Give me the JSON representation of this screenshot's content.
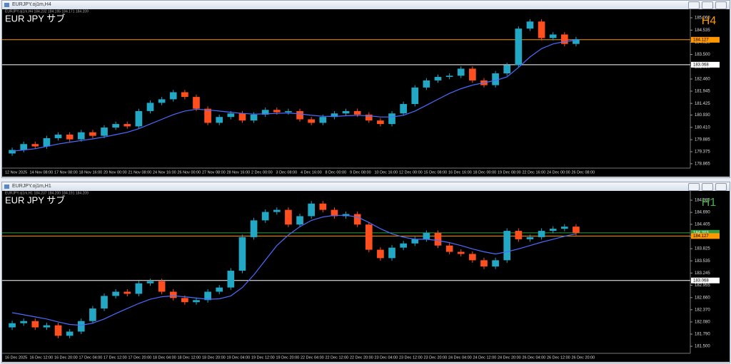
{
  "windows": [
    {
      "title": "EURJPY.oj1m,H4"
    },
    {
      "title": "EURJPY.oj1m,H1"
    }
  ],
  "chart_data": [
    {
      "type": "candlestick",
      "info": "EURJPY.oj1m,H4 184.232 184.195 184.171 184.209",
      "symbol_label": "EUR JPY  サブ",
      "timeframe_label": "H4",
      "timeframe_color": "#ff9800",
      "x_labels": [
        "12 Nov 2025",
        "14 Nov 08:00",
        "17 Nov 08:00",
        "18 Nov 16:00",
        "20 Nov 00:00",
        "21 Nov 08:00",
        "24 Nov 16:00",
        "26 Nov 00:00",
        "27 Nov 08:00",
        "28 Nov 16:00",
        "2 Dec 00:00",
        "3 Dec 08:00",
        "4 Dec 16:00",
        "8 Dec 00:00",
        "9 Dec 08:00",
        "10 Dec 16:00",
        "12 Dec 00:00",
        "15 Dec 08:00",
        "16 Dec 16:00",
        "18 Dec 00:00",
        "19 Dec 08:00",
        "22 Dec 16:00",
        "24 Dec 00:00",
        "26 Dec 08:00"
      ],
      "open": [
        179.3,
        179.45,
        179.7,
        179.6,
        179.95,
        180.1,
        179.9,
        180.2,
        180.05,
        180.4,
        180.55,
        180.45,
        181.1,
        181.45,
        181.6,
        181.9,
        181.7,
        181.2,
        180.6,
        180.85,
        181.0,
        180.7,
        180.95,
        181.15,
        181.05,
        181.1,
        180.75,
        180.6,
        180.85,
        181.0,
        181.1,
        180.95,
        180.7,
        180.55,
        181.0,
        181.4,
        182.1,
        182.4,
        182.55,
        182.6,
        182.9,
        182.4,
        182.2,
        182.7,
        183.05,
        184.6,
        184.9,
        184.2,
        184.35,
        183.95
      ],
      "high": [
        179.55,
        179.8,
        179.8,
        180.05,
        180.2,
        180.2,
        180.3,
        180.3,
        180.5,
        180.65,
        180.65,
        181.2,
        181.55,
        181.7,
        182.0,
        182.0,
        181.8,
        181.3,
        180.95,
        181.1,
        181.1,
        181.05,
        181.25,
        181.25,
        181.2,
        181.2,
        180.85,
        180.95,
        181.1,
        181.2,
        181.2,
        181.05,
        180.8,
        181.1,
        181.5,
        182.2,
        182.5,
        182.65,
        182.7,
        183.0,
        183.0,
        182.5,
        182.8,
        183.15,
        184.7,
        185.0,
        185.0,
        184.45,
        184.45,
        184.25
      ],
      "low": [
        179.2,
        179.35,
        179.5,
        179.5,
        179.85,
        179.8,
        179.8,
        179.95,
        179.95,
        180.3,
        180.35,
        180.35,
        181.0,
        181.35,
        181.5,
        181.6,
        181.1,
        180.5,
        180.5,
        180.75,
        180.6,
        180.6,
        180.85,
        180.95,
        180.95,
        180.65,
        180.5,
        180.5,
        180.75,
        180.9,
        180.85,
        180.6,
        180.45,
        180.45,
        180.9,
        181.3,
        182.0,
        182.3,
        182.45,
        182.5,
        182.3,
        182.1,
        182.1,
        182.6,
        182.95,
        184.5,
        184.1,
        184.1,
        183.85,
        183.85
      ],
      "close": [
        179.45,
        179.7,
        179.6,
        179.95,
        180.1,
        179.9,
        180.2,
        180.05,
        180.4,
        180.55,
        180.45,
        181.1,
        181.45,
        181.6,
        181.9,
        181.7,
        181.2,
        180.6,
        180.85,
        181.0,
        180.7,
        180.95,
        181.15,
        181.05,
        181.1,
        180.75,
        180.6,
        180.85,
        181.0,
        181.1,
        180.95,
        180.7,
        180.55,
        181.0,
        181.4,
        182.1,
        182.4,
        182.55,
        182.6,
        182.9,
        182.4,
        182.2,
        182.7,
        183.05,
        184.6,
        184.9,
        184.2,
        184.35,
        183.95,
        184.15
      ],
      "up_color": "#22a7c4",
      "down_color": "#ff4f1f",
      "ma": {
        "color": "#4a6cff",
        "values": [
          179.4,
          179.45,
          179.5,
          179.6,
          179.7,
          179.78,
          179.85,
          179.92,
          180.0,
          180.1,
          180.2,
          180.35,
          180.55,
          180.75,
          180.95,
          181.1,
          181.18,
          181.15,
          181.1,
          181.05,
          181.0,
          180.97,
          180.98,
          181.0,
          181.02,
          180.98,
          180.92,
          180.88,
          180.87,
          180.9,
          180.92,
          180.9,
          180.85,
          180.85,
          180.92,
          181.1,
          181.35,
          181.6,
          181.85,
          182.05,
          182.2,
          182.3,
          182.4,
          182.55,
          182.95,
          183.4,
          183.75,
          183.95,
          184.05,
          184.1
        ]
      },
      "levels": [
        {
          "value": 184.127,
          "color": "#ff9800"
        },
        {
          "value": 183.068,
          "color": "#ffffff"
        }
      ],
      "ylim": [
        178.8,
        185.24
      ],
      "yticks": [
        {
          "value": 185.06,
          "label": "185.060"
        },
        184.535,
        {
          "value": 184.02,
          "label": "184.020"
        },
        {
          "value": 183.5,
          "label": "183.500"
        },
        {
          "value": 182.98,
          "label": "182.980"
        },
        {
          "value": 182.46,
          "label": "182.460"
        },
        181.945,
        181.425,
        {
          "value": 180.93,
          "label": "180.930"
        },
        {
          "value": 180.41,
          "label": "180.410"
        },
        179.885,
        179.375,
        178.865
      ]
    },
    {
      "type": "candlestick",
      "info": "EURJPY.oj1m,H1 184.237 184.200 184.191 184.209",
      "symbol_label": "EUR JPY  サブ",
      "timeframe_label": "H1",
      "timeframe_color": "#4caf50",
      "x_labels": [
        "16 Dec 2025",
        "16 Dec 12:00",
        "16 Dec 20:00",
        "17 Dec 04:00",
        "17 Dec 12:00",
        "17 Dec 20:00",
        "18 Dec 04:00",
        "18 Dec 12:00",
        "18 Dec 20:00",
        "19 Dec 04:00",
        "19 Dec 12:00",
        "19 Dec 20:00",
        "22 Dec 04:00",
        "22 Dec 12:00",
        "22 Dec 20:00",
        "23 Dec 04:00",
        "23 Dec 12:00",
        "23 Dec 20:00",
        "24 Dec 04:00",
        "24 Dec 12:00",
        "24 Dec 20:00",
        "26 Dec 04:00",
        "26 Dec 12:00",
        "26 Dec 20:00"
      ],
      "open": [
        181.95,
        182.05,
        182.1,
        181.95,
        182.0,
        181.75,
        181.85,
        182.1,
        182.4,
        182.7,
        182.8,
        182.75,
        183.0,
        183.05,
        182.8,
        182.65,
        182.55,
        182.6,
        182.8,
        182.9,
        183.3,
        184.1,
        184.5,
        184.7,
        184.75,
        184.4,
        184.6,
        184.9,
        184.75,
        184.6,
        184.65,
        184.4,
        183.8,
        183.6,
        183.85,
        183.95,
        184.05,
        184.2,
        183.9,
        183.75,
        183.7,
        183.55,
        183.4,
        183.55,
        184.25,
        184.05,
        184.1,
        184.25,
        184.3,
        184.35
      ],
      "high": [
        182.11,
        182.16,
        182.16,
        182.06,
        182.06,
        181.91,
        182.16,
        182.46,
        182.76,
        182.86,
        182.86,
        183.06,
        183.11,
        183.11,
        182.86,
        182.71,
        182.66,
        182.86,
        182.96,
        183.36,
        184.16,
        184.56,
        184.76,
        184.81,
        184.81,
        184.66,
        184.96,
        184.96,
        184.81,
        184.71,
        184.71,
        184.46,
        183.86,
        183.91,
        184.01,
        184.11,
        184.26,
        184.26,
        183.96,
        183.81,
        183.76,
        183.61,
        183.61,
        184.31,
        184.31,
        184.16,
        184.31,
        184.36,
        184.41,
        184.41
      ],
      "low": [
        181.89,
        181.99,
        181.89,
        181.89,
        181.69,
        181.69,
        181.79,
        182.04,
        182.34,
        182.64,
        182.69,
        182.69,
        182.94,
        182.74,
        182.59,
        182.49,
        182.49,
        182.54,
        182.74,
        182.84,
        183.24,
        184.04,
        184.44,
        184.64,
        184.34,
        184.34,
        184.54,
        184.69,
        184.54,
        184.54,
        184.34,
        183.74,
        183.54,
        183.54,
        183.79,
        183.89,
        183.99,
        183.84,
        183.69,
        183.64,
        183.49,
        183.34,
        183.34,
        183.49,
        183.99,
        183.99,
        184.04,
        184.19,
        184.24,
        184.14
      ],
      "close": [
        182.05,
        182.1,
        181.95,
        182.0,
        181.75,
        181.85,
        182.1,
        182.4,
        182.7,
        182.8,
        182.75,
        183.0,
        183.05,
        182.8,
        182.65,
        182.55,
        182.6,
        182.8,
        182.9,
        183.3,
        184.1,
        184.5,
        184.7,
        184.75,
        184.4,
        184.6,
        184.9,
        184.75,
        184.6,
        184.65,
        184.4,
        183.8,
        183.6,
        183.85,
        183.95,
        184.05,
        184.2,
        183.9,
        183.75,
        183.7,
        183.55,
        183.4,
        183.55,
        184.25,
        184.05,
        184.1,
        184.25,
        184.3,
        184.35,
        184.2
      ],
      "up_color": "#22a7c4",
      "down_color": "#ff4f1f",
      "ma": {
        "color": "#4a6cff",
        "values": [
          182.3,
          182.25,
          182.2,
          182.15,
          182.08,
          182.02,
          182.0,
          182.05,
          182.15,
          182.28,
          182.4,
          182.52,
          182.62,
          182.68,
          182.7,
          182.68,
          182.65,
          182.62,
          182.63,
          182.7,
          182.9,
          183.2,
          183.55,
          183.9,
          184.15,
          184.35,
          184.5,
          184.58,
          184.62,
          184.62,
          184.58,
          184.45,
          184.3,
          184.18,
          184.1,
          184.05,
          184.05,
          184.02,
          183.97,
          183.9,
          183.82,
          183.75,
          183.7,
          183.75,
          183.82,
          183.9,
          183.98,
          184.05,
          184.12,
          184.18
        ]
      },
      "levels": [
        {
          "value": 184.203,
          "color": "#2e9e3e"
        },
        {
          "value": 184.127,
          "color": "#ff9800"
        },
        {
          "value": 183.068,
          "color": "#ffffff"
        }
      ],
      "ylim": [
        181.4,
        185.1
      ],
      "yticks": [
        {
          "value": 184.98,
          "label": "184.980"
        },
        {
          "value": 184.69,
          "label": "184.690"
        },
        184.405,
        184.115,
        183.825,
        183.535,
        183.245,
        182.955,
        {
          "value": 182.66,
          "label": "182.660"
        },
        {
          "value": 182.37,
          "label": "182.370"
        },
        {
          "value": 182.08,
          "label": "182.080"
        },
        {
          "value": 181.79,
          "label": "181.790"
        },
        {
          "value": 181.5,
          "label": "181.500"
        }
      ]
    }
  ]
}
